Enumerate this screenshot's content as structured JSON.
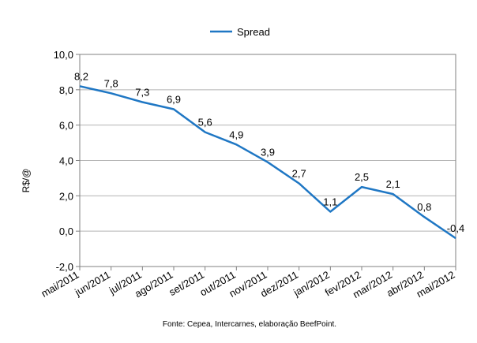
{
  "chart_data": {
    "type": "line",
    "title": "",
    "xlabel": "",
    "ylabel": "R$/@",
    "categories": [
      "mai/2011",
      "jun/2011",
      "jul/2011",
      "ago/2011",
      "set/2011",
      "out/2011",
      "nov/2011",
      "dez/2011",
      "jan/2012",
      "fev/2012",
      "mar/2012",
      "abr/2012",
      "mai/2012"
    ],
    "series": [
      {
        "name": "Spread",
        "values": [
          8.2,
          7.8,
          7.3,
          6.9,
          5.6,
          4.9,
          3.9,
          2.7,
          1.1,
          2.5,
          2.1,
          0.8,
          -0.4
        ],
        "labels": [
          "8,2",
          "7,8",
          "7,3",
          "6,9",
          "5,6",
          "4,9",
          "3,9",
          "2,7",
          "1,1",
          "2,5",
          "2,1",
          "0,8",
          "-0,4"
        ],
        "color": "#1f77c4"
      }
    ],
    "ylim": [
      -2.0,
      10.0
    ],
    "yticks": [
      -2.0,
      0.0,
      2.0,
      4.0,
      6.0,
      8.0,
      10.0
    ],
    "ytick_labels": [
      "-2,0",
      "0,0",
      "2,0",
      "4,0",
      "6,0",
      "8,0",
      "10,0"
    ],
    "grid": true,
    "legend_position": "top-center",
    "source_note": "Fonte: Cepea, Intercarnes, elaboração BeefPoint."
  },
  "colors": {
    "line": "#1f77c4",
    "grid": "#b3b3b3",
    "axis": "#808080"
  }
}
